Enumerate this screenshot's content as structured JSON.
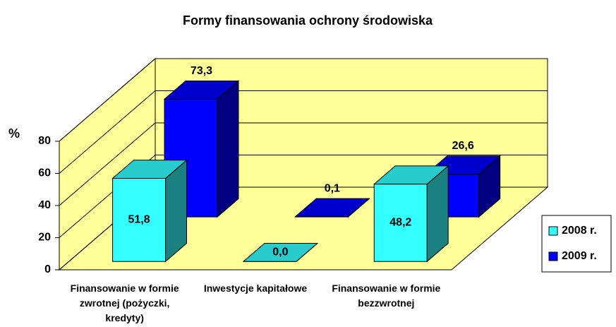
{
  "chart_data": {
    "type": "bar3d",
    "title": "Formy finansowania ochrony środowiska",
    "ylabel": "%",
    "categories": [
      "Finansowanie w formie zwrotnej (pożyczki, kredyty)",
      "Inwestycje kapitałowe",
      "Finansowanie w formie bezzwrotnej"
    ],
    "series": [
      {
        "name": "2008 r.",
        "color": "#33ffff",
        "values": [
          51.8,
          0.0,
          48.2
        ],
        "value_labels": [
          "51,8",
          "0,0",
          "48,2"
        ]
      },
      {
        "name": "2009 r.",
        "color": "#0000ff",
        "values": [
          73.3,
          0.1,
          26.6
        ],
        "value_labels": [
          "73,3",
          "0,1",
          "26,6"
        ]
      }
    ],
    "ylim": [
      0,
      80
    ],
    "yticks": [
      0,
      20,
      40,
      60,
      80
    ],
    "grid": true,
    "legend": "right"
  }
}
